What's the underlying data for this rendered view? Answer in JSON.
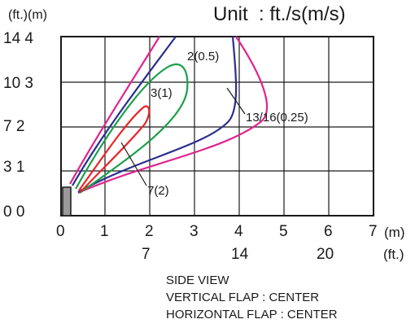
{
  "header": {
    "axis_units": "(ft.)(m)",
    "unit_text": "Unit  : ft./s(m/s)"
  },
  "y_ticks": [
    {
      "ft": "14",
      "m": "4"
    },
    {
      "ft": "10",
      "m": "3"
    },
    {
      "ft": "7",
      "m": "2"
    },
    {
      "ft": "3",
      "m": "1"
    },
    {
      "ft": "0",
      "m": "0"
    }
  ],
  "x_ticks_m": [
    "0",
    "1",
    "2",
    "3",
    "4",
    "5",
    "6",
    "7"
  ],
  "x_ticks_ft": [
    "7",
    "14",
    "20"
  ],
  "x_unit_m": "(m)",
  "x_unit_ft": "(ft.)",
  "curves": [
    {
      "label": "2(0.5)",
      "color": "#2b2f8f"
    },
    {
      "label": "3(1)",
      "color": "#1aa04a"
    },
    {
      "label": "13/16(0.25)",
      "color": "#e0248c"
    },
    {
      "label": "7(2)",
      "color": "#e8262a"
    }
  ],
  "caption": {
    "line1": "SIDE VIEW",
    "line2": "VERTICAL FLAP : CENTER",
    "line3": "HORIZONTAL FLAP : CENTER"
  }
}
